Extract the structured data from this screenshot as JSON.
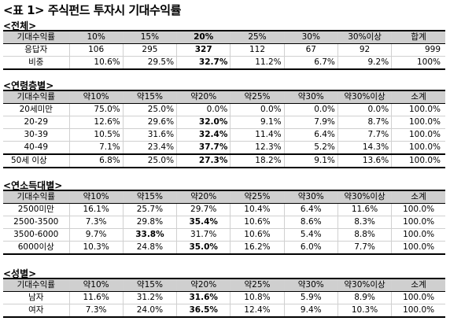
{
  "title": "<표 1> 주식펀드 투자시 기대수익률",
  "sections": [
    {
      "title": "<전체>",
      "header": [
        "기대수익률",
        "10%",
        "15%",
        "20%",
        "25%",
        "30%",
        "30%이상",
        "합계"
      ],
      "rows": [
        [
          "응답자",
          "106",
          "295",
          "327",
          "112",
          "67",
          "92",
          "999"
        ],
        [
          "비중",
          "10.6%",
          "29.5%",
          "32.7%",
          "11.2%",
          "6.7%",
          "9.2%",
          "100%"
        ]
      ]
    },
    {
      "title": "<연령층별>",
      "header": [
        "기대수익률",
        "약10%",
        "약15%",
        "약20%",
        "약25%",
        "약30%",
        "약30%이상",
        "소계"
      ],
      "rows": [
        [
          "20세미만",
          "75.0%",
          "25.0%",
          "0.0%",
          "0.0%",
          "0.0%",
          "0.0%",
          "100.0%"
        ],
        [
          "20-29",
          "12.6%",
          "29.6%",
          "32.0%",
          "9.1%",
          "7.9%",
          "8.7%",
          "100.0%"
        ],
        [
          "30-39",
          "10.5%",
          "31.6%",
          "32.4%",
          "11.4%",
          "6.4%",
          "7.7%",
          "100.0%"
        ],
        [
          "40-49",
          "7.1%",
          "23.4%",
          "37.7%",
          "12.3%",
          "5.2%",
          "14.3%",
          "100.0%"
        ],
        [
          "50세 이상",
          "6.8%",
          "25.0%",
          "27.3%",
          "18.2%",
          "9.1%",
          "13.6%",
          "100.0%"
        ]
      ]
    },
    {
      "title": "<연소득대별>",
      "header": [
        "기대수익률",
        "약10%",
        "약15%",
        "약20%",
        "약25%",
        "약30%",
        "약30%이상",
        "소계"
      ],
      "rows": [
        [
          "2500미만",
          "16.1%",
          "25.7%",
          "29.7%",
          "10.4%",
          "6.4%",
          "11.6%",
          "100.0%"
        ],
        [
          "2500-3500",
          "7.3%",
          "29.8%",
          "35.4%",
          "10.6%",
          "8.6%",
          "8.3%",
          "100.0%"
        ],
        [
          "3500-6000",
          "9.7%",
          "33.8%",
          "31.7%",
          "10.6%",
          "5.4%",
          "8.8%",
          "100.0%"
        ],
        [
          "6000이상",
          "10.3%",
          "24.8%",
          "35.0%",
          "16.2%",
          "6.0%",
          "7.7%",
          "100.0%"
        ]
      ]
    },
    {
      "title": "<성별>",
      "header": [
        "기대수익률",
        "약10%",
        "약15%",
        "약20%",
        "약25%",
        "약30%",
        "약30%이상",
        "소계"
      ],
      "rows": [
        [
          "남자",
          "11.6%",
          "31.2%",
          "31.6%",
          "10.8%",
          "5.9%",
          "8.9%",
          "100.0%"
        ],
        [
          "여자",
          "7.3%",
          "24.0%",
          "36.5%",
          "12.4%",
          "9.4%",
          "10.3%",
          "100.0%"
        ]
      ]
    }
  ]
}
